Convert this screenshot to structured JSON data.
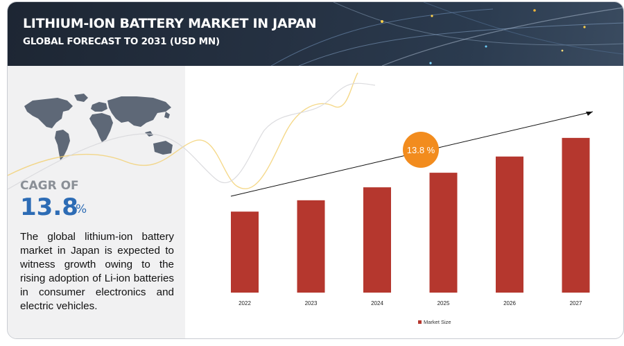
{
  "header": {
    "title": "LITHIUM-ION BATTERY MARKET IN JAPAN",
    "subtitle": "GLOBAL FORECAST TO 2031 (USD MN)"
  },
  "sidebar": {
    "cagr_label": "CAGR OF",
    "cagr_value": "13.8",
    "cagr_unit": "%",
    "description": "The global lithium-ion battery market in Japan is expected to witness growth owing to the rising adoption of Li-ion batteries in consumer electronics and electric vehicles."
  },
  "colors": {
    "bar": "#b5372e",
    "badge": "#f28c1e",
    "accent": "#2d6cb5"
  },
  "chart_data": {
    "type": "bar",
    "categories": [
      "2022",
      "2023",
      "2024",
      "2025",
      "2026",
      "2027"
    ],
    "series": [
      {
        "name": "Market Size",
        "values": [
          100,
          114,
          130,
          148,
          168,
          191
        ]
      }
    ],
    "ylim": [
      0,
      220
    ],
    "title": "",
    "xlabel": "",
    "ylabel": "",
    "annotation": "13.8 %",
    "legend_position": "bottom-center"
  }
}
